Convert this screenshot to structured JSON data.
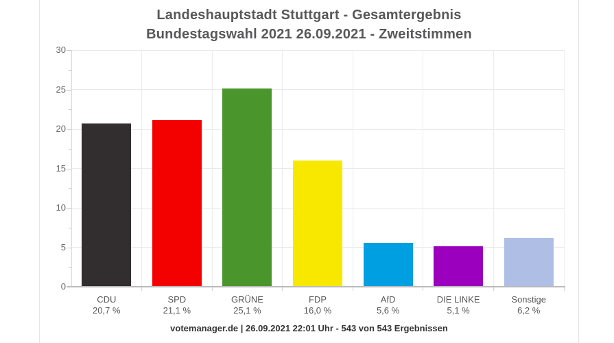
{
  "title": {
    "line1": "Landeshauptstadt Stuttgart - Gesamtergebnis",
    "line2": "Bundestagswahl 2021 26.09.2021  - Zweitstimmen"
  },
  "footer": {
    "text": "votemanager.de | 26.09.2021 22:01 Uhr - 543 von 543 Ergebnissen"
  },
  "colors": {
    "title_text": "#58585a",
    "axis_label": "#666666",
    "category_label": "#58585a",
    "gridline": "#e9e9e9",
    "axis_line": "#bbbbbb",
    "footer_text": "#333333",
    "panel_border": "#e4e4e4",
    "background": "#ffffff"
  },
  "chart_data": {
    "type": "bar",
    "title": "Landeshauptstadt Stuttgart - Gesamtergebnis",
    "subtitle": "Bundestagswahl 2021 26.09.2021  - Zweitstimmen",
    "categories": [
      "CDU",
      "SPD",
      "GRÜNE",
      "FDP",
      "AfD",
      "DIE LINKE",
      "Sonstige"
    ],
    "values": [
      20.7,
      21.1,
      25.1,
      16.0,
      5.6,
      5.1,
      6.2
    ],
    "value_labels": [
      "20,7 %",
      "21,1 %",
      "25,1 %",
      "16,0 %",
      "5,6 %",
      "5,1 %",
      "6,2 %"
    ],
    "bar_colors": [
      "#322e2f",
      "#f30000",
      "#4a962c",
      "#f8e800",
      "#009fe1",
      "#9a00bd",
      "#aebee5"
    ],
    "xlabel": "",
    "ylabel": "",
    "ylim": [
      0,
      30
    ],
    "y_ticks": [
      0,
      5,
      10,
      15,
      20,
      25,
      30
    ],
    "y_minor_step": 2.5,
    "grid": true,
    "legend": "none",
    "source_note": "votemanager.de | 26.09.2021 22:01 Uhr - 543 von 543 Ergebnissen"
  }
}
